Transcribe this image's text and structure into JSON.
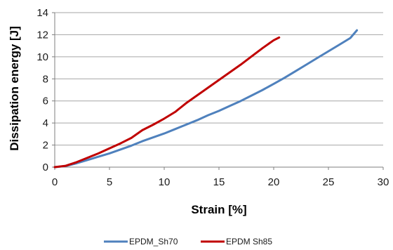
{
  "chart_data": {
    "type": "line",
    "xlabel": "Strain [%]",
    "ylabel": "Dissipation energy [J]",
    "xlim": [
      0,
      30
    ],
    "ylim": [
      0,
      14
    ],
    "x_ticks": [
      0,
      5,
      10,
      15,
      20,
      25,
      30
    ],
    "y_ticks": [
      0,
      2,
      4,
      6,
      8,
      10,
      12,
      14
    ],
    "grid": "horizontal",
    "legend_position": "bottom",
    "series": [
      {
        "name": "EPDM_Sh70",
        "color": "#4f81bd",
        "x": [
          0,
          1,
          2,
          3,
          4,
          5,
          6,
          7,
          8,
          9,
          10,
          11,
          12,
          13,
          14,
          15,
          16,
          17,
          18,
          19,
          20,
          21,
          22,
          23,
          24,
          25,
          26,
          27,
          27.6
        ],
        "y": [
          0,
          0.1,
          0.35,
          0.65,
          0.95,
          1.25,
          1.6,
          1.95,
          2.35,
          2.7,
          3.05,
          3.45,
          3.85,
          4.25,
          4.7,
          5.1,
          5.55,
          6.0,
          6.5,
          7.0,
          7.55,
          8.1,
          8.7,
          9.3,
          9.9,
          10.5,
          11.1,
          11.7,
          12.4
        ]
      },
      {
        "name": "EPDM Sh85",
        "color": "#c00000",
        "x": [
          0,
          1,
          2,
          3,
          4,
          5,
          6,
          7,
          8,
          9,
          10,
          11,
          12,
          13,
          14,
          15,
          16,
          17,
          18,
          19,
          20,
          20.5
        ],
        "y": [
          0,
          0.12,
          0.45,
          0.85,
          1.25,
          1.7,
          2.15,
          2.65,
          3.35,
          3.85,
          4.4,
          5.0,
          5.8,
          6.5,
          7.2,
          7.9,
          8.6,
          9.3,
          10.05,
          10.8,
          11.5,
          11.75
        ]
      }
    ]
  }
}
